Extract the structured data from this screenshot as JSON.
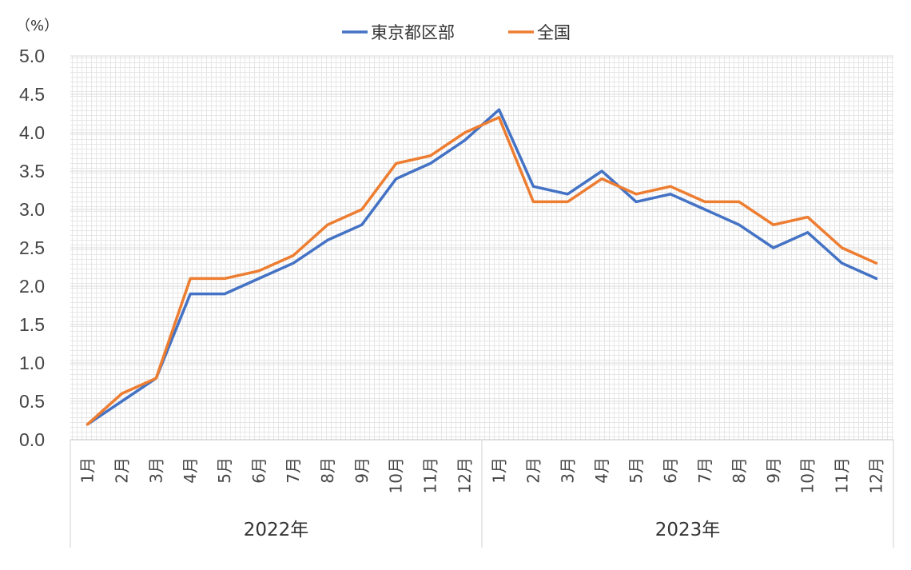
{
  "chart_data": {
    "type": "line",
    "unit_label": "（%）",
    "ylim": [
      0,
      5
    ],
    "y_ticks": [
      "0.0",
      "0.5",
      "1.0",
      "1.5",
      "2.0",
      "2.5",
      "3.0",
      "3.5",
      "4.0",
      "4.5",
      "5.0"
    ],
    "categories": [
      "1月",
      "2月",
      "3月",
      "4月",
      "5月",
      "6月",
      "7月",
      "8月",
      "9月",
      "10月",
      "11月",
      "12月",
      "1月",
      "2月",
      "3月",
      "4月",
      "5月",
      "6月",
      "7月",
      "8月",
      "9月",
      "10月",
      "11月",
      "12月"
    ],
    "groups": [
      {
        "label": "2022年",
        "count": 12
      },
      {
        "label": "2023年",
        "count": 12
      }
    ],
    "series": [
      {
        "name": "東京都区部",
        "color": "#4472c4",
        "values": [
          0.2,
          0.5,
          0.8,
          1.9,
          1.9,
          2.1,
          2.3,
          2.6,
          2.8,
          3.4,
          3.6,
          3.9,
          4.3,
          3.3,
          3.2,
          3.5,
          3.1,
          3.2,
          3.0,
          2.8,
          2.5,
          2.7,
          2.3,
          2.1
        ]
      },
      {
        "name": "全国",
        "color": "#ed7d31",
        "values": [
          0.2,
          0.6,
          0.8,
          2.1,
          2.1,
          2.2,
          2.4,
          2.8,
          3.0,
          3.6,
          3.7,
          4.0,
          4.2,
          3.1,
          3.1,
          3.4,
          3.2,
          3.3,
          3.1,
          3.1,
          2.8,
          2.9,
          2.5,
          2.3
        ]
      }
    ],
    "grid": true,
    "legend_position": "top-center"
  }
}
